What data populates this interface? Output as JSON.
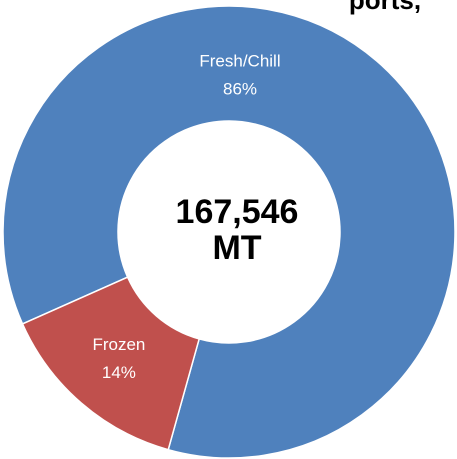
{
  "chart_data": {
    "type": "donut",
    "title": "ports,",
    "categories": [
      "Fresh/Chill",
      "Frozen"
    ],
    "values": [
      86,
      14
    ],
    "value_labels": [
      "86%",
      "14%"
    ],
    "colors": [
      "#4f81bd",
      "#c0504d"
    ],
    "center_text": [
      "167,546",
      "MT"
    ]
  }
}
